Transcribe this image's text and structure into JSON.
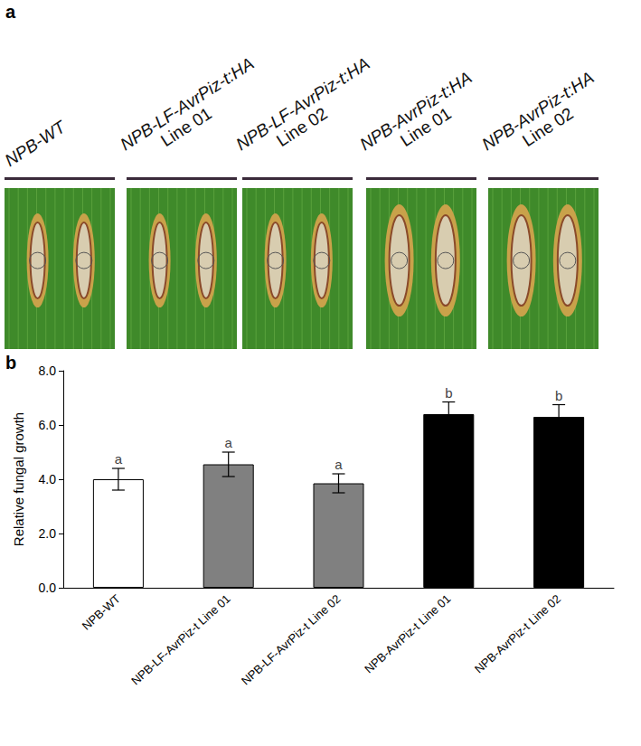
{
  "panel_a": {
    "label": "a",
    "groups": [
      {
        "name": "NPB-WT"
      },
      {
        "name": "NPB-LF-AvrPiz-t:HA",
        "line": "Line 01"
      },
      {
        "name": "NPB-LF-AvrPiz-t:HA",
        "line": "Line 02"
      },
      {
        "name": "NPB-AvrPiz-t:HA",
        "line": "Line 01"
      },
      {
        "name": "NPB-AvrPiz-t:HA",
        "line": "Line 02"
      }
    ]
  },
  "panel_b_label": "b",
  "chart_data": {
    "type": "bar",
    "y_label": "Relative fungal growth",
    "categories": [
      "NPB-WT",
      "NPB-LF-AvrPiz-t Line 01",
      "NPB-LF-AvrPiz-t Line 02",
      "NPB-AvrPiz-t Line 01",
      "NPB-AvrPiz-t Line 02"
    ],
    "values": [
      4.0,
      4.55,
      3.85,
      6.4,
      6.3
    ],
    "errors": [
      0.4,
      0.45,
      0.35,
      0.45,
      0.45
    ],
    "annotations": [
      "a",
      "a",
      "a",
      "b",
      "b"
    ],
    "colors": [
      "#ffffff",
      "#808080",
      "#808080",
      "#000000",
      "#000000"
    ],
    "ylim": [
      0,
      8
    ],
    "yticks": [
      {
        "value": 0,
        "label": "0.0"
      },
      {
        "value": 2,
        "label": "2.0"
      },
      {
        "value": 4,
        "label": "4.0"
      },
      {
        "value": 6,
        "label": "6.0"
      },
      {
        "value": 8,
        "label": "8.0"
      }
    ],
    "grid": false
  }
}
